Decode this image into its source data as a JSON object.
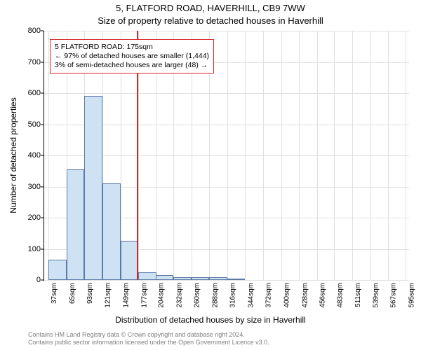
{
  "title": "5, FLATFORD ROAD, HAVERHILL, CB9 7WW",
  "subtitle": "Size of property relative to detached houses in Haverhill",
  "xlabel": "Distribution of detached houses by size in Haverhill",
  "ylabel": "Number of detached properties",
  "chart": {
    "type": "histogram",
    "background_color": "#ffffff",
    "grid_color": "#e0e0e0",
    "axis_color": "#000000",
    "bar_fill": "#cfe2f3",
    "bar_border": "#5b7aa8",
    "marker_color": "#d62728",
    "marker_x": 175,
    "x_min": 30,
    "x_max": 600,
    "y_min": 0,
    "y_max": 800,
    "y_ticks": [
      0,
      100,
      200,
      300,
      400,
      500,
      600,
      700,
      800
    ],
    "x_tick_values": [
      37,
      65,
      93,
      121,
      149,
      177,
      204,
      232,
      260,
      288,
      316,
      344,
      372,
      400,
      428,
      456,
      483,
      511,
      539,
      567,
      595
    ],
    "x_tick_labels": [
      "37sqm",
      "65sqm",
      "93sqm",
      "121sqm",
      "149sqm",
      "177sqm",
      "204sqm",
      "232sqm",
      "260sqm",
      "288sqm",
      "316sqm",
      "344sqm",
      "372sqm",
      "400sqm",
      "428sqm",
      "456sqm",
      "483sqm",
      "511sqm",
      "539sqm",
      "567sqm",
      "595sqm"
    ],
    "bin_width": 28,
    "bins_start": [
      37,
      65,
      93,
      121,
      149,
      177,
      204,
      232,
      260,
      288,
      316
    ],
    "counts": [
      65,
      355,
      590,
      310,
      125,
      25,
      15,
      10,
      10,
      8,
      5
    ],
    "label_fontsize": 12,
    "tick_fontsize": 11,
    "title_fontsize": 13
  },
  "annotation": {
    "line1": "5 FLATFORD ROAD: 175sqm",
    "line2": "← 97% of detached houses are smaller (1,444)",
    "line3": "3% of semi-detached houses are larger (48) →"
  },
  "footer": {
    "line1": "Contains HM Land Registry data © Crown copyright and database right 2024.",
    "line2": "Contains public sector information licensed under the Open Government Licence v3.0."
  }
}
